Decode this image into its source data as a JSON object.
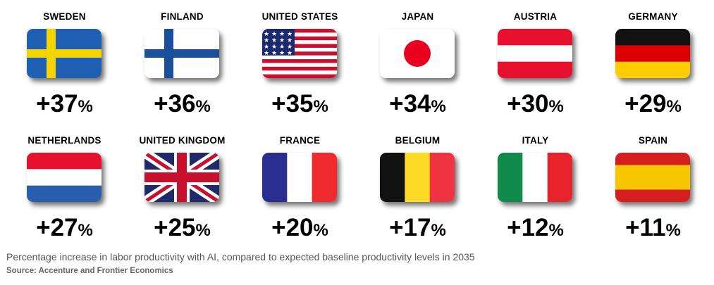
{
  "chart_data": {
    "type": "table",
    "categories": [
      "SWEDEN",
      "FINLAND",
      "UNITED STATES",
      "JAPAN",
      "AUSTRIA",
      "GERMANY",
      "NETHERLANDS",
      "UNITED KINGDOM",
      "FRANCE",
      "BELGIUM",
      "ITALY",
      "SPAIN"
    ],
    "values": [
      37,
      36,
      35,
      34,
      30,
      29,
      27,
      25,
      20,
      17,
      12,
      11
    ],
    "value_labels": [
      "+37",
      "+36",
      "+35",
      "+34",
      "+30",
      "+29",
      "+27",
      "+25",
      "+20",
      "+17",
      "+12",
      "+11"
    ],
    "unit": "%",
    "flags": [
      "sweden-flag-icon",
      "finland-flag-icon",
      "usa-flag-icon",
      "japan-flag-icon",
      "austria-flag-icon",
      "germany-flag-icon",
      "netherlands-flag-icon",
      "uk-flag-icon",
      "france-flag-icon",
      "belgium-flag-icon",
      "italy-flag-icon",
      "spain-flag-icon"
    ],
    "caption": "Percentage increase in labor productivity with AI, compared to expected baseline productivity levels in 2035",
    "source": "Source: Accenture and Frontier Economics"
  }
}
